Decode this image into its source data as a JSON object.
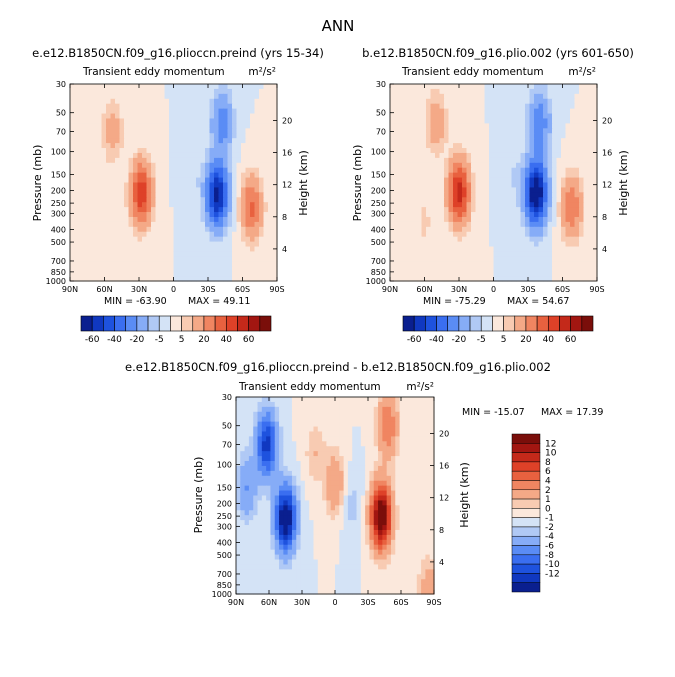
{
  "page_title": "ANN",
  "chart_data": [
    {
      "type": "heatmap",
      "id": "panel-1",
      "title": "e.e12.B1850CN.f09_g16.plioccn.preind (yrs 15-34)",
      "subtitle": "Transient eddy momentum",
      "units": "m²/s²",
      "xlabel": "",
      "ylabel": "Pressure (mb)",
      "ylabel_right": "Height (km)",
      "x_ticks": [
        "90N",
        "60N",
        "30N",
        "0",
        "30S",
        "60S",
        "90S"
      ],
      "y_ticks": [
        "30",
        "50",
        "70",
        "100",
        "150",
        "200",
        "250",
        "300",
        "400",
        "500",
        "700",
        "850",
        "1000"
      ],
      "height_ticks": [
        "4",
        "8",
        "12",
        "16",
        "20"
      ],
      "min_label": "MIN = -63.90",
      "max_label": "MAX = 49.11",
      "min": -63.9,
      "max": 49.11,
      "features": [
        {
          "lat": 28,
          "p": 210,
          "amp": 47
        },
        {
          "lat": 53,
          "p": 70,
          "amp": 14
        },
        {
          "lat": -38,
          "p": 215,
          "amp": -64
        },
        {
          "lat": -42,
          "p": 60,
          "amp": -26
        },
        {
          "lat": -68,
          "p": 270,
          "amp": 32
        },
        {
          "lat": 60,
          "p": 350,
          "amp": 5
        },
        {
          "lat": -18,
          "p": 150,
          "amp": -4
        }
      ]
    },
    {
      "type": "heatmap",
      "id": "panel-2",
      "title": "b.e12.B1850CN.f09_g16.plio.002 (yrs 601-650)",
      "subtitle": "Transient eddy momentum",
      "units": "m²/s²",
      "xlabel": "",
      "ylabel": "Pressure (mb)",
      "ylabel_right": "Height (km)",
      "x_ticks": [
        "90N",
        "60N",
        "30N",
        "0",
        "30S",
        "60S",
        "90S"
      ],
      "y_ticks": [
        "30",
        "50",
        "70",
        "100",
        "150",
        "200",
        "250",
        "300",
        "400",
        "500",
        "700",
        "850",
        "1000"
      ],
      "height_ticks": [
        "4",
        "8",
        "12",
        "16",
        "20"
      ],
      "min_label": "MIN = -75.29",
      "max_label": "MAX = 54.67",
      "min": -75.29,
      "max": 54.67,
      "features": [
        {
          "lat": 30,
          "p": 205,
          "amp": 54
        },
        {
          "lat": 50,
          "p": 60,
          "amp": 16
        },
        {
          "lat": -37,
          "p": 210,
          "amp": -75
        },
        {
          "lat": -40,
          "p": 60,
          "amp": -28
        },
        {
          "lat": -68,
          "p": 270,
          "amp": 28
        },
        {
          "lat": 60,
          "p": 350,
          "amp": 6
        },
        {
          "lat": -18,
          "p": 150,
          "amp": -5
        }
      ]
    },
    {
      "type": "heatmap",
      "id": "panel-diff",
      "title": "e.e12.B1850CN.f09_g16.plioccn.preind - b.e12.B1850CN.f09_g16.plio.002",
      "subtitle": "Transient eddy momentum",
      "units": "m²/s²",
      "xlabel": "",
      "ylabel": "Pressure (mb)",
      "ylabel_right": "Height (km)",
      "x_ticks": [
        "90N",
        "60N",
        "30N",
        "0",
        "30S",
        "60S",
        "90S"
      ],
      "y_ticks": [
        "30",
        "50",
        "70",
        "100",
        "150",
        "200",
        "250",
        "300",
        "400",
        "500",
        "700",
        "850",
        "1000"
      ],
      "height_ticks": [
        "4",
        "8",
        "12",
        "16",
        "20"
      ],
      "min_label": "MIN = -15.07",
      "max_label": "MAX = 17.39",
      "min": -15.07,
      "max": 17.39,
      "features": [
        {
          "lat": 45,
          "p": 260,
          "amp": -15
        },
        {
          "lat": 62,
          "p": 70,
          "amp": -11
        },
        {
          "lat": -42,
          "p": 250,
          "amp": 17
        },
        {
          "lat": -48,
          "p": 50,
          "amp": 6
        },
        {
          "lat": 0,
          "p": 140,
          "amp": 4
        },
        {
          "lat": 18,
          "p": 80,
          "amp": 2
        },
        {
          "lat": -15,
          "p": 200,
          "amp": -1.5
        },
        {
          "lat": 80,
          "p": 150,
          "amp": -4
        },
        {
          "lat": -85,
          "p": 900,
          "amp": 3
        }
      ]
    }
  ],
  "colorbar_main": {
    "labels": [
      "-60",
      "-40",
      "-20",
      "-5",
      "5",
      "20",
      "40",
      "60"
    ],
    "levels": [
      -70,
      -60,
      -50,
      -40,
      -30,
      -20,
      -10,
      -5,
      0,
      5,
      10,
      20,
      30,
      40,
      50,
      60,
      70
    ],
    "colors": [
      "#0a1f8f",
      "#1038c0",
      "#1e52de",
      "#3a6ef0",
      "#5a8cf5",
      "#86acf7",
      "#b0c9f5",
      "#d4e3f6",
      "#fbe8dc",
      "#f8cbb2",
      "#f4a987",
      "#f08561",
      "#e8613f",
      "#de4128",
      "#c4291a",
      "#a21611",
      "#7a0e0a"
    ]
  },
  "colorbar_diff": {
    "labels": [
      "12",
      "10",
      "8",
      "6",
      "4",
      "2",
      "1",
      "0",
      "-1",
      "-2",
      "-4",
      "-6",
      "-8",
      "-10",
      "-12"
    ],
    "levels": [
      -14,
      -12,
      -10,
      -8,
      -6,
      -4,
      -2,
      -1,
      0,
      1,
      2,
      4,
      6,
      8,
      10,
      12,
      14
    ],
    "colors": [
      "#0a1f8f",
      "#1038c0",
      "#1e52de",
      "#3a6ef0",
      "#5a8cf5",
      "#86acf7",
      "#b0c9f5",
      "#d4e3f6",
      "#fbe8dc",
      "#f8cbb2",
      "#f4a987",
      "#f08561",
      "#e8613f",
      "#de4128",
      "#c4291a",
      "#a21611",
      "#7a0e0a"
    ]
  }
}
